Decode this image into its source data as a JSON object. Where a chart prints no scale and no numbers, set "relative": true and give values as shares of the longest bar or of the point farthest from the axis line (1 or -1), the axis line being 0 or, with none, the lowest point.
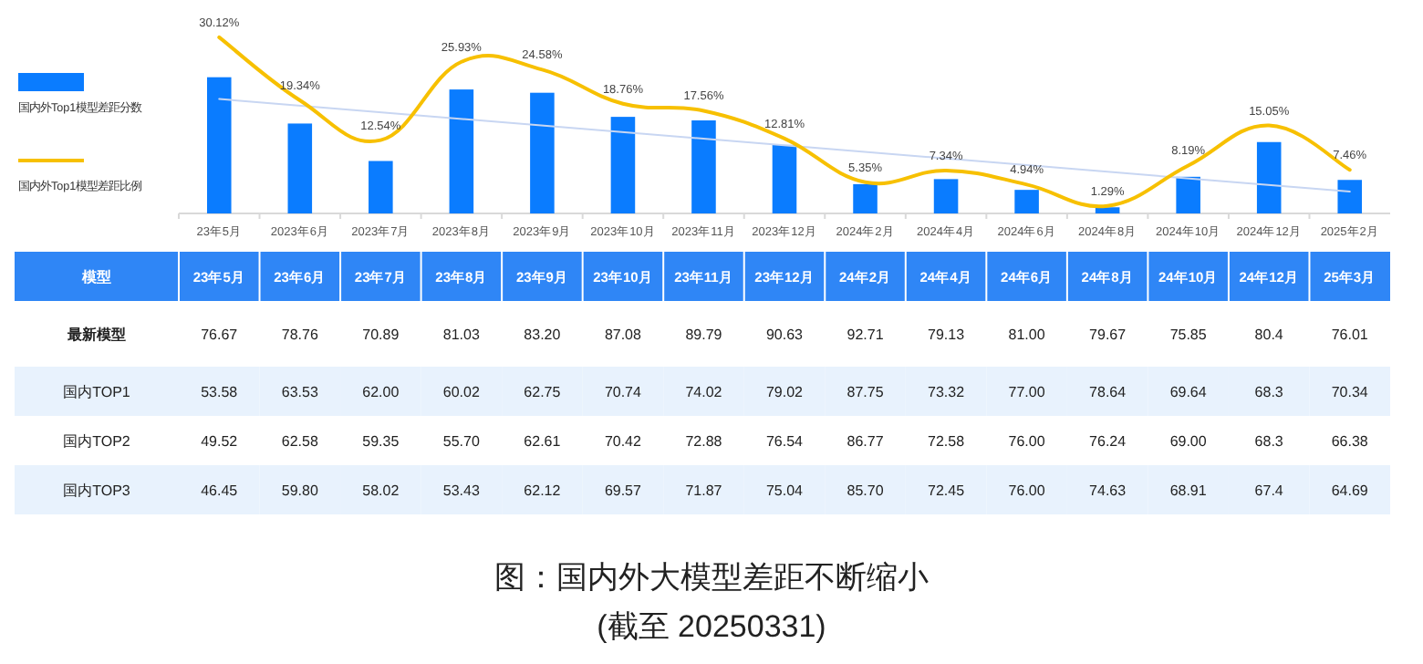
{
  "chart_data": [
    {
      "type": "bar",
      "relative": true,
      "legend": "left",
      "tick_labels": "x",
      "categories": [
        "23年5月",
        "2023年6月",
        "2023年7月",
        "2023年8月",
        "2023年9月",
        "2023年10月",
        "2023年11月",
        "2023年12月",
        "2024年2月",
        "2024年4月",
        "2024年6月",
        "2024年8月",
        "2024年10月",
        "2024年12月",
        "2025年2月"
      ],
      "series": [
        {
          "name": "国内外Top1模型差距分数",
          "type": "bar",
          "color": "#0a7cff",
          "values": [
            1.0,
            0.66,
            0.385,
            0.91,
            0.886,
            0.709,
            0.683,
            0.503,
            0.215,
            0.252,
            0.173,
            0.045,
            0.269,
            0.524,
            0.246
          ]
        },
        {
          "type": "line",
          "color": "#c8d6f2",
          "values": [
            0.84,
            null,
            null,
            null,
            null,
            null,
            null,
            null,
            null,
            null,
            null,
            null,
            null,
            null,
            0.16
          ]
        }
      ]
    },
    {
      "type": "line",
      "legend": "left",
      "tick_labels": false,
      "categories": [
        null,
        null,
        null,
        null,
        null,
        null,
        null,
        null,
        null,
        null,
        null,
        null,
        null,
        null,
        null
      ],
      "series": [
        {
          "name": "国内外Top1模型差距比例",
          "color": "#f7c000",
          "values": [
            30.12,
            19.34,
            12.54,
            25.93,
            24.58,
            18.76,
            17.56,
            12.81,
            5.35,
            7.34,
            4.94,
            1.29,
            8.19,
            15.05,
            7.46
          ],
          "value_labels": [
            "30.12%",
            "19.34%",
            "12.54%",
            "25.93%",
            "24.58%",
            "18.76%",
            "17.56%",
            "12.81%",
            "5.35%",
            "7.34%",
            "4.94%",
            "1.29%",
            "8.19%",
            "15.05%",
            "7.46%"
          ]
        }
      ]
    },
    {
      "type": "other",
      "ylabel": "模型",
      "categories": [
        "23年5月",
        "23年6月",
        "23年7月",
        "23年8月",
        "23年9月",
        "23年10月",
        "23年11月",
        "23年12月",
        "24年2月",
        "24年4月",
        "24年6月",
        "24年8月",
        "24年10月",
        "24年12月",
        "25年3月"
      ],
      "y_categories": [
        "最新模型",
        "国内TOP1",
        "国内TOP2",
        "国内TOP3"
      ],
      "cell_labels": [
        [
          "76.67",
          "78.76",
          "70.89",
          "81.03",
          "83.20",
          "87.08",
          "89.79",
          "90.63",
          "92.71",
          "79.13",
          "81.00",
          "79.67",
          "75.85",
          "80.4",
          "76.01"
        ],
        [
          "53.58",
          "63.53",
          "62.00",
          "60.02",
          "62.75",
          "70.74",
          "74.02",
          "79.02",
          "87.75",
          "73.32",
          "77.00",
          "78.64",
          "69.64",
          "68.3",
          "70.34"
        ],
        [
          "49.52",
          "62.58",
          "59.35",
          "55.70",
          "62.61",
          "70.42",
          "72.88",
          "76.54",
          "86.77",
          "72.58",
          "76.00",
          "76.24",
          "69.00",
          "68.3",
          "66.38"
        ],
        [
          "46.45",
          "59.80",
          "58.02",
          "53.43",
          "62.12",
          "69.57",
          "71.87",
          "75.04",
          "85.70",
          "72.45",
          "76.00",
          "74.63",
          "68.91",
          "67.4",
          "64.69"
        ]
      ],
      "annotations": [
        "图：国内外大模型差距不断缩小",
        "(截至 20250331)"
      ]
    }
  ]
}
